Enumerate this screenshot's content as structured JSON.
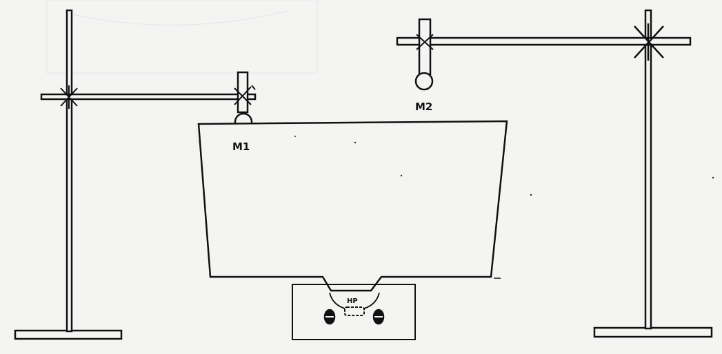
{
  "diagram": {
    "labels": {
      "microphone_1": "M1",
      "microphone_2": "M2",
      "source": "HP"
    }
  }
}
